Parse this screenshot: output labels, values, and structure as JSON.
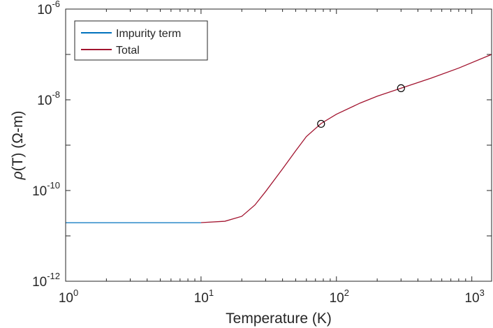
{
  "chart_data": {
    "type": "line",
    "xscale": "log",
    "yscale": "log",
    "xlim": [
      1,
      1400
    ],
    "ylim": [
      1e-12,
      1e-06
    ],
    "xlabel": "Temperature (K)",
    "ylabel_symbol": "ρ",
    "ylabel_rest": "(T) (Ω-m)",
    "x_ticks": [
      {
        "base": "10",
        "exp": "0",
        "value": 1
      },
      {
        "base": "10",
        "exp": "1",
        "value": 10
      },
      {
        "base": "10",
        "exp": "2",
        "value": 100
      },
      {
        "base": "10",
        "exp": "3",
        "value": 1000
      }
    ],
    "y_ticks": [
      {
        "base": "10",
        "exp": "-12",
        "value": 1e-12
      },
      {
        "base": "10",
        "exp": "-10",
        "value": 1e-10
      },
      {
        "base": "10",
        "exp": "-8",
        "value": 1e-08
      },
      {
        "base": "10",
        "exp": "-6",
        "value": 1e-06
      }
    ],
    "series": [
      {
        "name": "Impurity term",
        "color": "#0072BD",
        "x": [
          1,
          10
        ],
        "y": [
          1.95e-11,
          1.95e-11
        ]
      },
      {
        "name": "Total",
        "color": "#A2142F",
        "x": [
          10,
          15,
          20,
          25,
          30,
          40,
          50,
          60,
          77,
          100,
          150,
          200,
          300,
          500,
          800,
          1400
        ],
        "y": [
          1.96e-11,
          2.1e-11,
          2.7e-11,
          4.8e-11,
          9.5e-11,
          3e-10,
          7.5e-10,
          1.55e-09,
          3e-09,
          4.8e-09,
          8.5e-09,
          1.2e-08,
          1.8e-08,
          3e-08,
          5e-08,
          1e-07
        ]
      }
    ],
    "markers": [
      {
        "x": 77,
        "y": 2.95e-09,
        "symbol": "circle"
      },
      {
        "x": 300,
        "y": 1.8e-08,
        "symbol": "circle"
      }
    ],
    "legend_position": "top-left"
  }
}
